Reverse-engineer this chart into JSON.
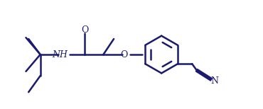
{
  "bg_color": "#ffffff",
  "line_color": "#1a1a6e",
  "line_width": 1.8,
  "figsize": [
    3.7,
    1.54
  ],
  "dpi": 100,
  "NH_label": "NH",
  "O_label": "O",
  "N_label": "N"
}
